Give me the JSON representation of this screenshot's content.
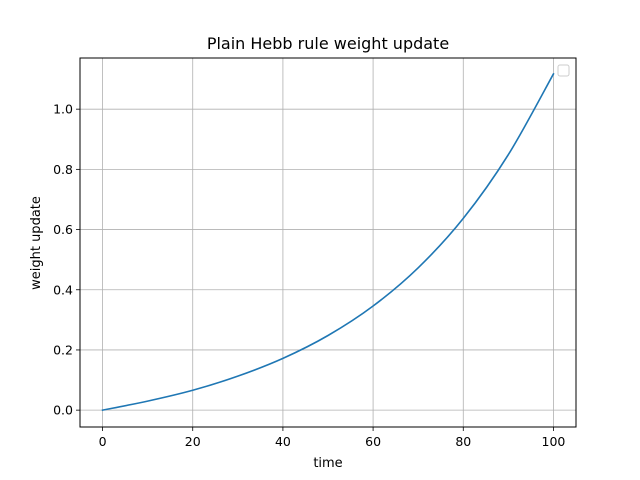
{
  "chart_data": {
    "type": "line",
    "title": "Plain Hebb rule weight update",
    "xlabel": "time",
    "ylabel": "weight update",
    "xlim": [
      -5,
      105
    ],
    "ylim": [
      -0.056,
      1.17
    ],
    "xticks": [
      0,
      20,
      40,
      60,
      80,
      100
    ],
    "yticks": [
      0.0,
      0.2,
      0.4,
      0.6,
      0.8,
      1.0
    ],
    "xtick_labels": [
      "0",
      "20",
      "40",
      "60",
      "80",
      "100"
    ],
    "ytick_labels": [
      "0.0",
      "0.2",
      "0.4",
      "0.6",
      "0.8",
      "1.0"
    ],
    "grid": true,
    "legend": {
      "placement": "top-right",
      "entries": []
    },
    "series": [
      {
        "color": "#1f77b4",
        "x": [
          0,
          10,
          20,
          30,
          40,
          50,
          60,
          70,
          80,
          90,
          100
        ],
        "y": [
          0.0,
          0.03,
          0.066,
          0.113,
          0.172,
          0.248,
          0.346,
          0.473,
          0.637,
          0.849,
          1.117
        ]
      }
    ]
  }
}
